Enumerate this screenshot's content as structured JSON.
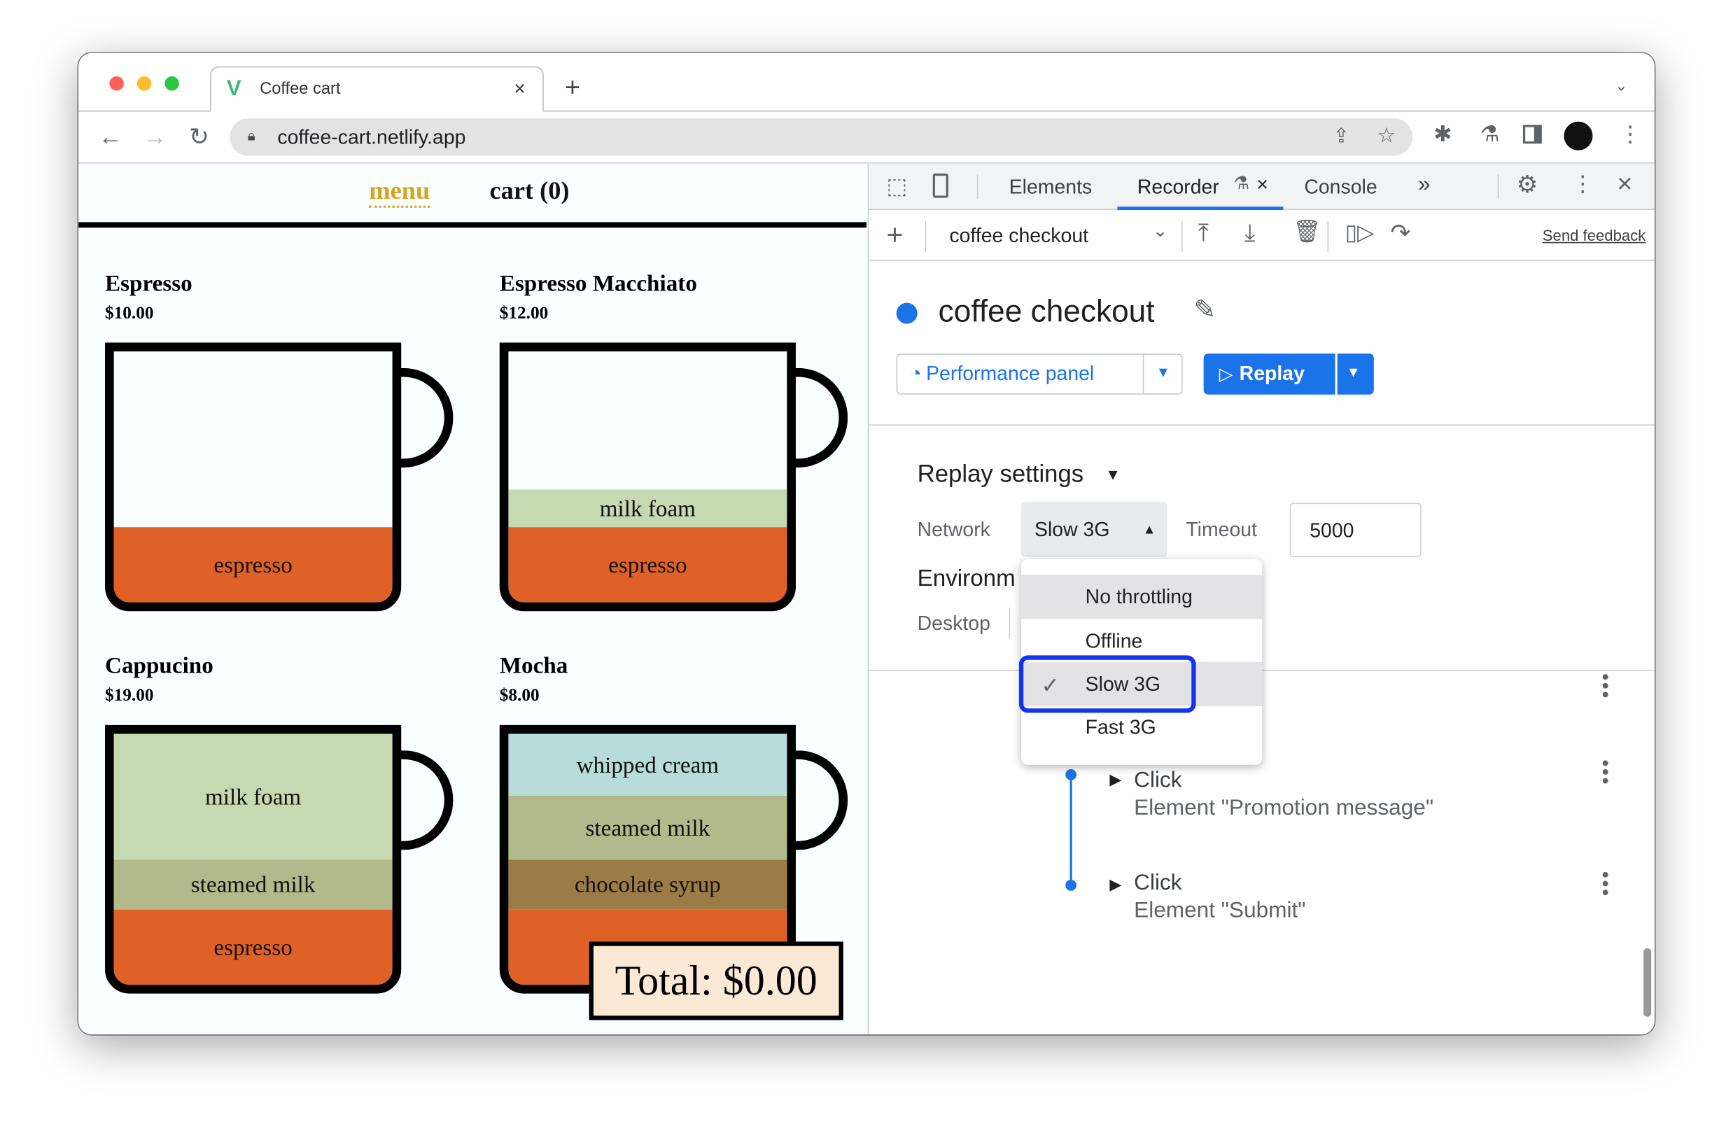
{
  "browser": {
    "tab_title": "Coffee cart",
    "url": "coffee-cart.netlify.app",
    "icons": [
      "back-icon",
      "forward-icon",
      "reload-icon",
      "lock-icon",
      "share-icon",
      "star-icon",
      "extensions-icon",
      "flask-icon",
      "sidebar-icon",
      "profile-icon",
      "kebab-icon"
    ]
  },
  "page": {
    "nav": {
      "menu": "menu",
      "cart": "cart (0)"
    },
    "accent": "#d8a41c",
    "products": [
      {
        "name": "Espresso",
        "price": "$10.00",
        "layers": [
          "espresso"
        ]
      },
      {
        "name": "Espresso Macchiato",
        "price": "$12.00",
        "layers": [
          "milk foam",
          "espresso"
        ]
      },
      {
        "name": "Cappucino",
        "price": "$19.00",
        "layers": [
          "milk foam",
          "steamed milk",
          "espresso"
        ]
      },
      {
        "name": "Mocha",
        "price": "$8.00",
        "layers": [
          "whipped cream",
          "steamed milk",
          "chocolate syrup",
          "espresso"
        ]
      }
    ],
    "layer_colors": {
      "espresso": "#df6128",
      "milk foam": "#c6d9b1",
      "steamed milk": "#b2b98a",
      "whipped cream": "#b7dcda",
      "chocolate syrup": "#9c7c45"
    },
    "total": "Total: $0.00"
  },
  "devtools": {
    "tabs": [
      "Elements",
      "Recorder",
      "Console"
    ],
    "active_tab": "Recorder",
    "more_tabs": "»",
    "recording_select": "coffee checkout",
    "send_feedback": "Send feedback",
    "recording_title": "coffee checkout",
    "performance_button": "Performance panel",
    "replay_button": "Replay",
    "replay_settings": "Replay settings",
    "network_label": "Network",
    "network_value": "Slow 3G",
    "timeout_label": "Timeout",
    "timeout_value": "5000",
    "environment_label": "Environm",
    "environment_value": "Desktop",
    "network_options": [
      "No throttling",
      "Offline",
      "Slow 3G",
      "Fast 3G"
    ],
    "selected_option": "Slow 3G",
    "steps": [
      {
        "type": "Click",
        "detail": "Element \"Promotion message\""
      },
      {
        "type": "Click",
        "detail": "Element \"Submit\""
      }
    ],
    "accent": "#1a73e8",
    "focus_ring": "#1034f0"
  }
}
